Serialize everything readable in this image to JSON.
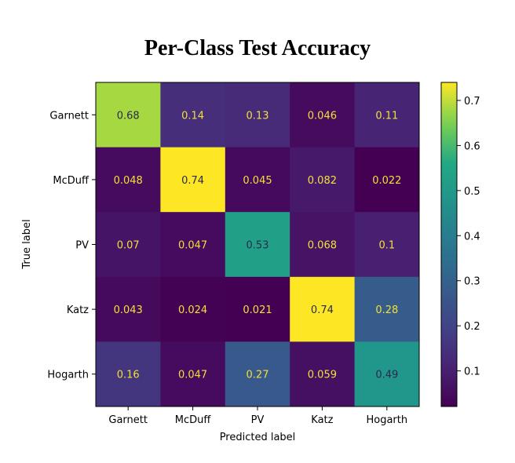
{
  "chart_data": {
    "type": "heatmap",
    "title": "Per-Class Test Accuracy",
    "xlabel": "Predicted label",
    "ylabel": "True label",
    "x_categories": [
      "Garnett",
      "McDuff",
      "PV",
      "Katz",
      "Hogarth"
    ],
    "y_categories": [
      "Garnett",
      "McDuff",
      "PV",
      "Katz",
      "Hogarth"
    ],
    "values": [
      [
        0.68,
        0.14,
        0.13,
        0.046,
        0.11
      ],
      [
        0.048,
        0.74,
        0.045,
        0.082,
        0.022
      ],
      [
        0.07,
        0.047,
        0.53,
        0.068,
        0.1
      ],
      [
        0.043,
        0.024,
        0.021,
        0.74,
        0.28
      ],
      [
        0.16,
        0.047,
        0.27,
        0.059,
        0.49
      ]
    ],
    "cell_labels": [
      [
        "0.68",
        "0.14",
        "0.13",
        "0.046",
        "0.11"
      ],
      [
        "0.048",
        "0.74",
        "0.045",
        "0.082",
        "0.022"
      ],
      [
        "0.07",
        "0.047",
        "0.53",
        "0.068",
        "0.1"
      ],
      [
        "0.043",
        "0.024",
        "0.021",
        "0.74",
        "0.28"
      ],
      [
        "0.16",
        "0.047",
        "0.27",
        "0.059",
        "0.49"
      ]
    ],
    "colormap": "viridis",
    "colorbar": {
      "range": [
        0.021,
        0.74
      ],
      "ticks": [
        0.1,
        0.2,
        0.3,
        0.4,
        0.5,
        0.6,
        0.7
      ],
      "tick_labels": [
        "0.1",
        "0.2",
        "0.3",
        "0.4",
        "0.5",
        "0.6",
        "0.7"
      ]
    },
    "grid": false
  }
}
